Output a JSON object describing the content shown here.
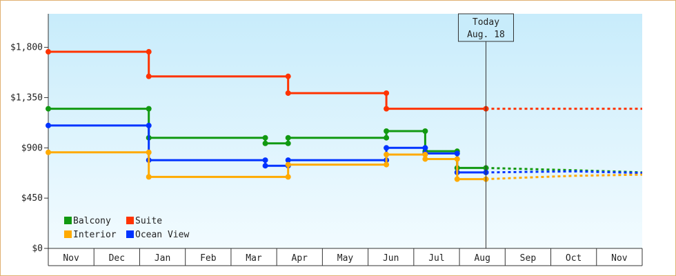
{
  "chart_data": {
    "type": "line",
    "y_ticks": [
      0,
      450,
      900,
      1350,
      1800
    ],
    "y_tick_labels": [
      "$0",
      "$450",
      "$900",
      "$1,350",
      "$1,800"
    ],
    "ylim": [
      0,
      2100
    ],
    "x_categories": [
      "Nov",
      "Dec",
      "Jan",
      "Feb",
      "Mar",
      "Apr",
      "May",
      "Jun",
      "Jul",
      "Aug",
      "Sep",
      "Oct",
      "Nov"
    ],
    "x_range": [
      0,
      13
    ],
    "today": {
      "line1": "Today",
      "line2": "Aug. 18",
      "x": 9.58
    },
    "legend": {
      "position": "bottom-left"
    },
    "series": [
      {
        "name": "Suite",
        "color": "#ff3300",
        "points": [
          [
            0,
            1760
          ],
          [
            2.2,
            1760
          ],
          [
            2.2,
            1540
          ],
          [
            5.25,
            1540
          ],
          [
            5.25,
            1390
          ],
          [
            7.4,
            1390
          ],
          [
            7.4,
            1250
          ],
          [
            9.58,
            1250
          ]
        ],
        "projection": [
          [
            9.58,
            1250
          ],
          [
            13,
            1250
          ]
        ]
      },
      {
        "name": "Balcony",
        "color": "#119911",
        "points": [
          [
            0,
            1250
          ],
          [
            2.2,
            1250
          ],
          [
            2.2,
            990
          ],
          [
            4.75,
            990
          ],
          [
            4.75,
            940
          ],
          [
            5.25,
            940
          ],
          [
            5.25,
            990
          ],
          [
            7.4,
            990
          ],
          [
            7.4,
            1050
          ],
          [
            8.25,
            1050
          ],
          [
            8.25,
            870
          ],
          [
            8.95,
            870
          ],
          [
            8.95,
            720
          ],
          [
            9.58,
            720
          ]
        ],
        "projection": [
          [
            9.58,
            720
          ],
          [
            10.5,
            710
          ],
          [
            11.5,
            700
          ],
          [
            13,
            680
          ]
        ]
      },
      {
        "name": "Ocean View",
        "color": "#0033ff",
        "points": [
          [
            0,
            1100
          ],
          [
            2.2,
            1100
          ],
          [
            2.2,
            790
          ],
          [
            4.75,
            790
          ],
          [
            4.75,
            740
          ],
          [
            5.25,
            740
          ],
          [
            5.25,
            790
          ],
          [
            7.4,
            790
          ],
          [
            7.4,
            900
          ],
          [
            8.25,
            900
          ],
          [
            8.25,
            850
          ],
          [
            8.95,
            850
          ],
          [
            8.95,
            680
          ],
          [
            9.58,
            680
          ]
        ],
        "projection": [
          [
            9.58,
            680
          ],
          [
            10.5,
            685
          ],
          [
            11.5,
            690
          ],
          [
            13,
            675
          ]
        ]
      },
      {
        "name": "Interior",
        "color": "#ffaa00",
        "points": [
          [
            0,
            860
          ],
          [
            2.2,
            860
          ],
          [
            2.2,
            640
          ],
          [
            5.25,
            640
          ],
          [
            5.25,
            750
          ],
          [
            7.4,
            750
          ],
          [
            7.4,
            840
          ],
          [
            8.25,
            840
          ],
          [
            8.25,
            800
          ],
          [
            8.95,
            800
          ],
          [
            8.95,
            620
          ],
          [
            9.58,
            620
          ]
        ],
        "projection": [
          [
            9.58,
            620
          ],
          [
            10.5,
            635
          ],
          [
            11.5,
            650
          ],
          [
            13,
            660
          ]
        ]
      }
    ]
  }
}
